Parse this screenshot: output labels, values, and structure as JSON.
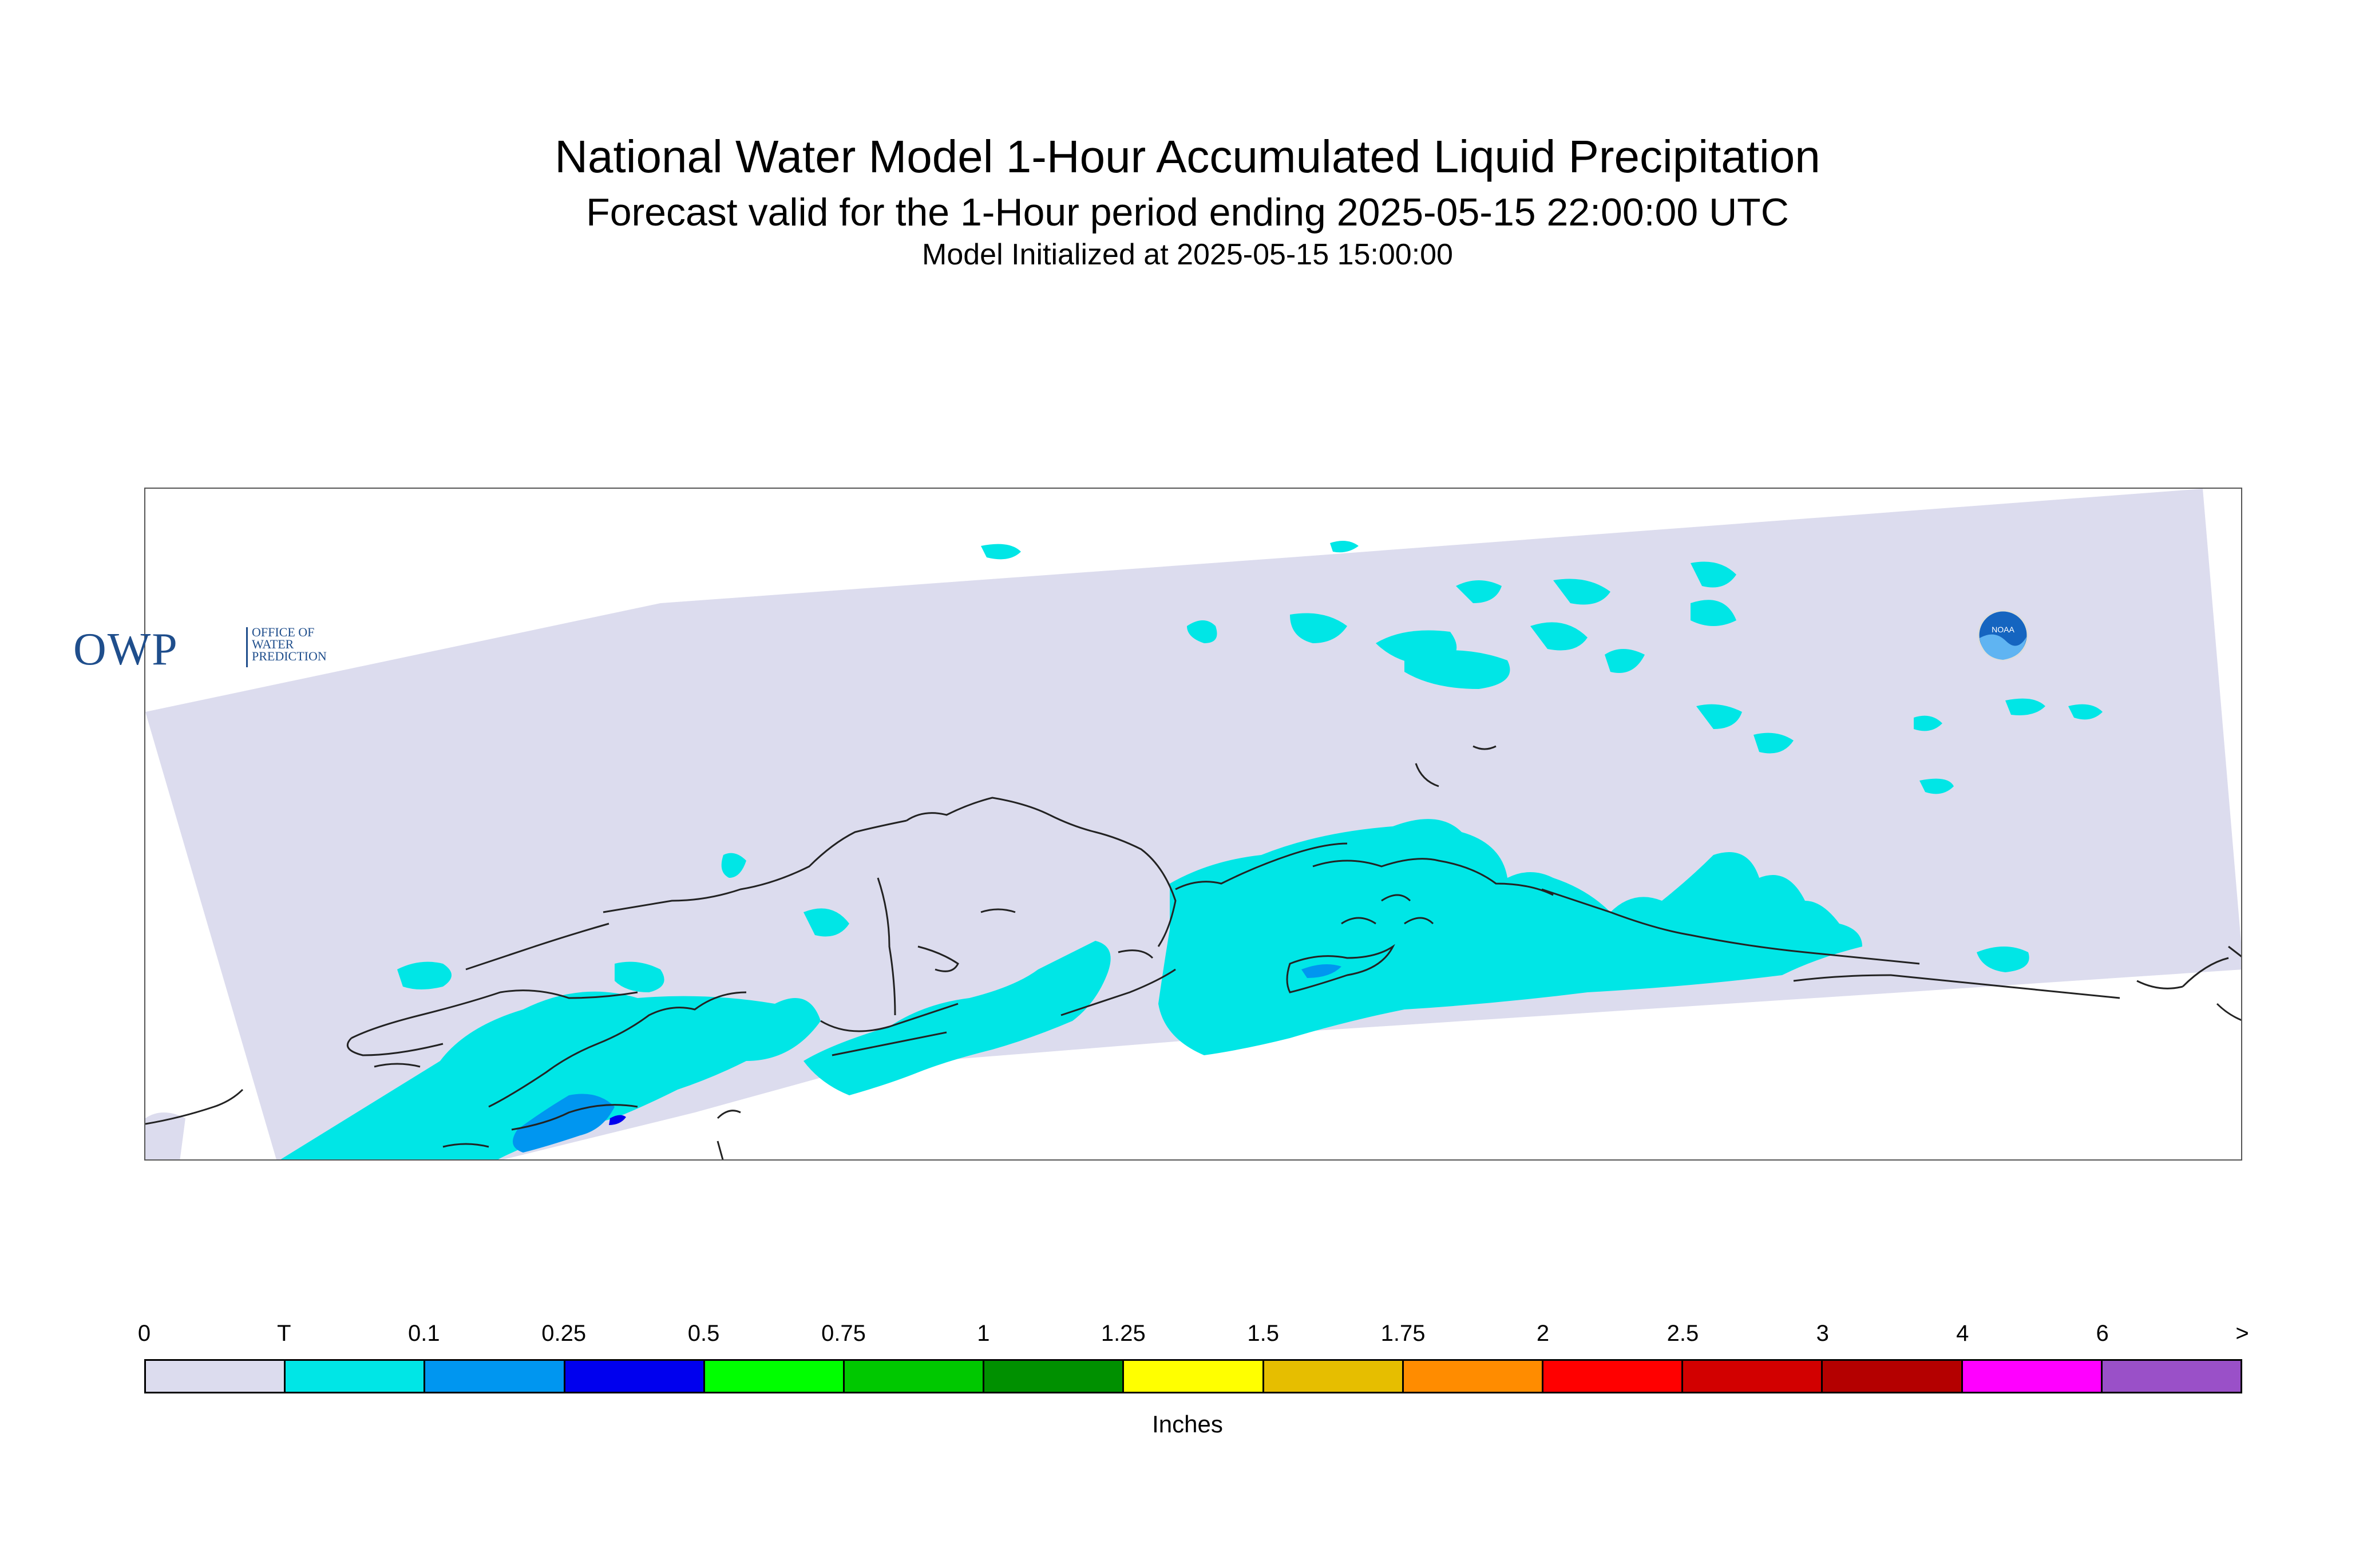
{
  "header": {
    "title": "National Water Model 1-Hour Accumulated Liquid Precipitation",
    "subtitle": "Forecast valid for the 1-Hour period ending 2025-05-15 22:00:00 UTC",
    "init": "Model Initialized at 2025-05-15 15:00:00"
  },
  "map": {
    "region": "Alaska",
    "domain_color": "#dcdcee",
    "coastline_color": "#222222",
    "precip_classes_present": [
      "T",
      "0.1",
      "0.25"
    ]
  },
  "logos": {
    "owp": {
      "main": "OWP",
      "sub": [
        "OFFICE OF",
        "WATER",
        "PREDICTION"
      ]
    },
    "noaa": {
      "icon": "noaa-logo-icon",
      "text": "NOAA"
    }
  },
  "legend": {
    "units": "Inches",
    "labels": [
      "0",
      "T",
      "0.1",
      "0.25",
      "0.5",
      "0.75",
      "1",
      "1.25",
      "1.5",
      "1.75",
      "2",
      "2.5",
      "3",
      "4",
      "6",
      ">"
    ],
    "colors": [
      "#dcdcee",
      "#00e6e6",
      "#0096f0",
      "#0000ee",
      "#00ff00",
      "#00c800",
      "#009000",
      "#ffff00",
      "#e6be00",
      "#ff8c00",
      "#ff0000",
      "#d20000",
      "#b40000",
      "#ff00ff",
      "#9a50c8"
    ]
  }
}
